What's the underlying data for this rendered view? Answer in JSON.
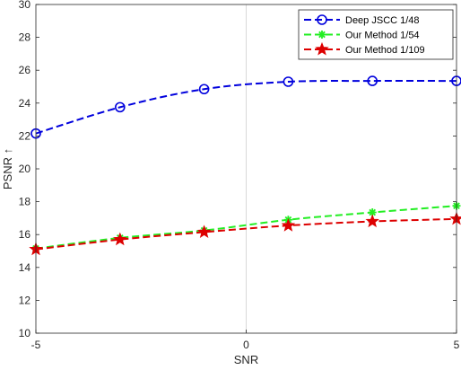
{
  "chart_data": {
    "type": "line",
    "xlabel": "SNR",
    "ylabel": "PSNR ↑",
    "xlim": [
      -5,
      5
    ],
    "ylim": [
      10,
      30
    ],
    "x_ticks": [
      -5,
      0,
      5
    ],
    "y_ticks": [
      10,
      12,
      14,
      16,
      18,
      20,
      22,
      24,
      26,
      28,
      30
    ],
    "grid": "x=0 reference line only",
    "legend_position": "top-right",
    "x": [
      -5,
      -3,
      -1,
      1,
      3,
      5
    ],
    "series": [
      {
        "name": "Deep JSCC 1/48",
        "values": [
          22.15,
          23.75,
          24.85,
          25.3,
          25.35,
          25.35
        ],
        "color": "#0000dd",
        "marker": "circle"
      },
      {
        "name": "Our Method 1/54",
        "values": [
          15.15,
          15.8,
          16.25,
          16.9,
          17.35,
          17.75
        ],
        "color": "#22ee22",
        "marker": "asterisk"
      },
      {
        "name": "Our Method 1/109",
        "values": [
          15.1,
          15.7,
          16.15,
          16.55,
          16.8,
          16.95
        ],
        "color": "#dd0000",
        "marker": "star"
      }
    ]
  }
}
